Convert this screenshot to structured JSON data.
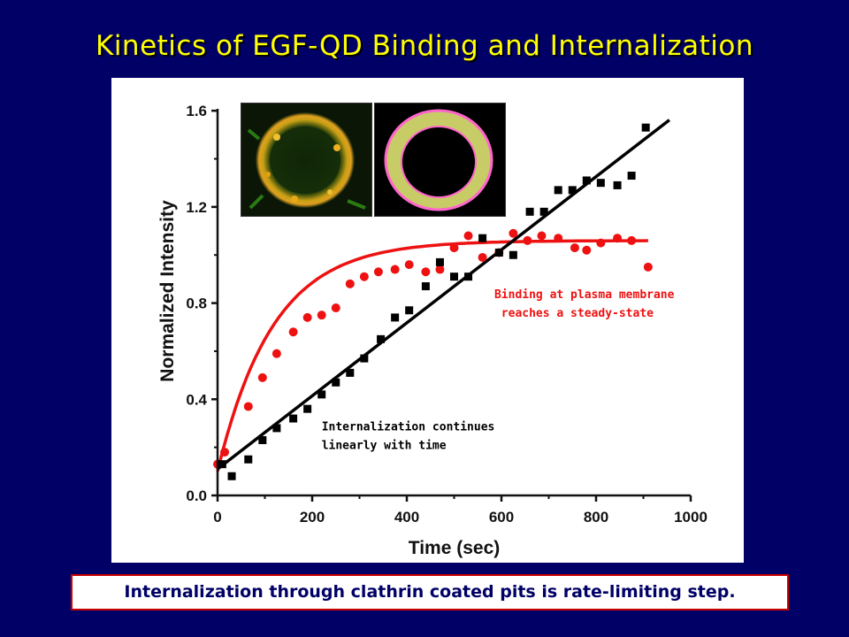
{
  "slide": {
    "title": "Kinetics of EGF-QD Binding and Internalization",
    "footer": "Internalization through clathrin coated pits is rate-limiting step."
  },
  "colors": {
    "background": "#000066",
    "title": "#ffff00",
    "binding_series": "#ee1111",
    "internalization_series": "#000000",
    "footer_border": "#cc0000"
  },
  "chart_data": {
    "type": "scatter",
    "xlabel": "Time (sec)",
    "ylabel": "Normalized Intensity",
    "xlim": [
      0,
      1000
    ],
    "ylim": [
      0,
      1.7
    ],
    "xticks": [
      0,
      200,
      400,
      600,
      800,
      1000
    ],
    "xtick_labels": [
      "0",
      "200",
      "400",
      "600",
      "800",
      "1000"
    ],
    "yticks": [
      0.0,
      0.4,
      0.8,
      1.2,
      1.6
    ],
    "ytick_labels": [
      "0.0",
      "0.4",
      "0.8",
      "1.2",
      "1.6"
    ],
    "grid": false,
    "series": [
      {
        "key": "binding",
        "marker": "circle",
        "color": "#ee1111",
        "x": [
          0,
          15,
          65,
          95,
          125,
          160,
          190,
          220,
          250,
          280,
          310,
          340,
          375,
          405,
          440,
          470,
          500,
          530,
          560,
          595,
          625,
          655,
          685,
          720,
          755,
          780,
          810,
          845,
          875,
          910
        ],
        "y": [
          0.13,
          0.18,
          0.37,
          0.49,
          0.59,
          0.68,
          0.74,
          0.75,
          0.78,
          0.88,
          0.91,
          0.93,
          0.94,
          0.96,
          0.93,
          0.94,
          1.03,
          1.08,
          0.99,
          1.01,
          1.09,
          1.06,
          1.08,
          1.07,
          1.03,
          1.02,
          1.05,
          1.07,
          1.06,
          0.95
        ],
        "fit": {
          "form": "exponential",
          "plateau": 1.06,
          "y0": 0.1,
          "rate": 0.0085,
          "xmax": 910
        }
      },
      {
        "key": "internalization",
        "marker": "square",
        "color": "#000000",
        "x": [
          10,
          30,
          65,
          95,
          125,
          160,
          190,
          220,
          250,
          280,
          310,
          345,
          375,
          405,
          440,
          470,
          500,
          530,
          560,
          595,
          625,
          660,
          690,
          720,
          750,
          780,
          810,
          845,
          875,
          905
        ],
        "y": [
          0.13,
          0.08,
          0.15,
          0.23,
          0.28,
          0.32,
          0.36,
          0.42,
          0.47,
          0.51,
          0.57,
          0.65,
          0.74,
          0.77,
          0.87,
          0.97,
          0.91,
          0.91,
          1.07,
          1.01,
          1.0,
          1.18,
          1.18,
          1.27,
          1.27,
          1.31,
          1.3,
          1.29,
          1.33,
          1.53
        ],
        "fit": {
          "form": "linear",
          "intercept": 0.11,
          "slope": 0.00152,
          "xmin": 0,
          "xmax": 955
        }
      }
    ],
    "annotations": [
      {
        "lines": [
          "Binding at plasma membrane",
          " reaches a steady-state"
        ],
        "color": "#ee1111",
        "at": [
          585,
          0.82
        ]
      },
      {
        "lines": [
          "Internalization continues",
          "linearly with time"
        ],
        "color": "#000000",
        "at": [
          220,
          0.27
        ]
      }
    ]
  },
  "inset_images": [
    {
      "description_icon": "fluorescent-cell-image"
    },
    {
      "description_icon": "segmented-membrane-mask-image"
    }
  ]
}
